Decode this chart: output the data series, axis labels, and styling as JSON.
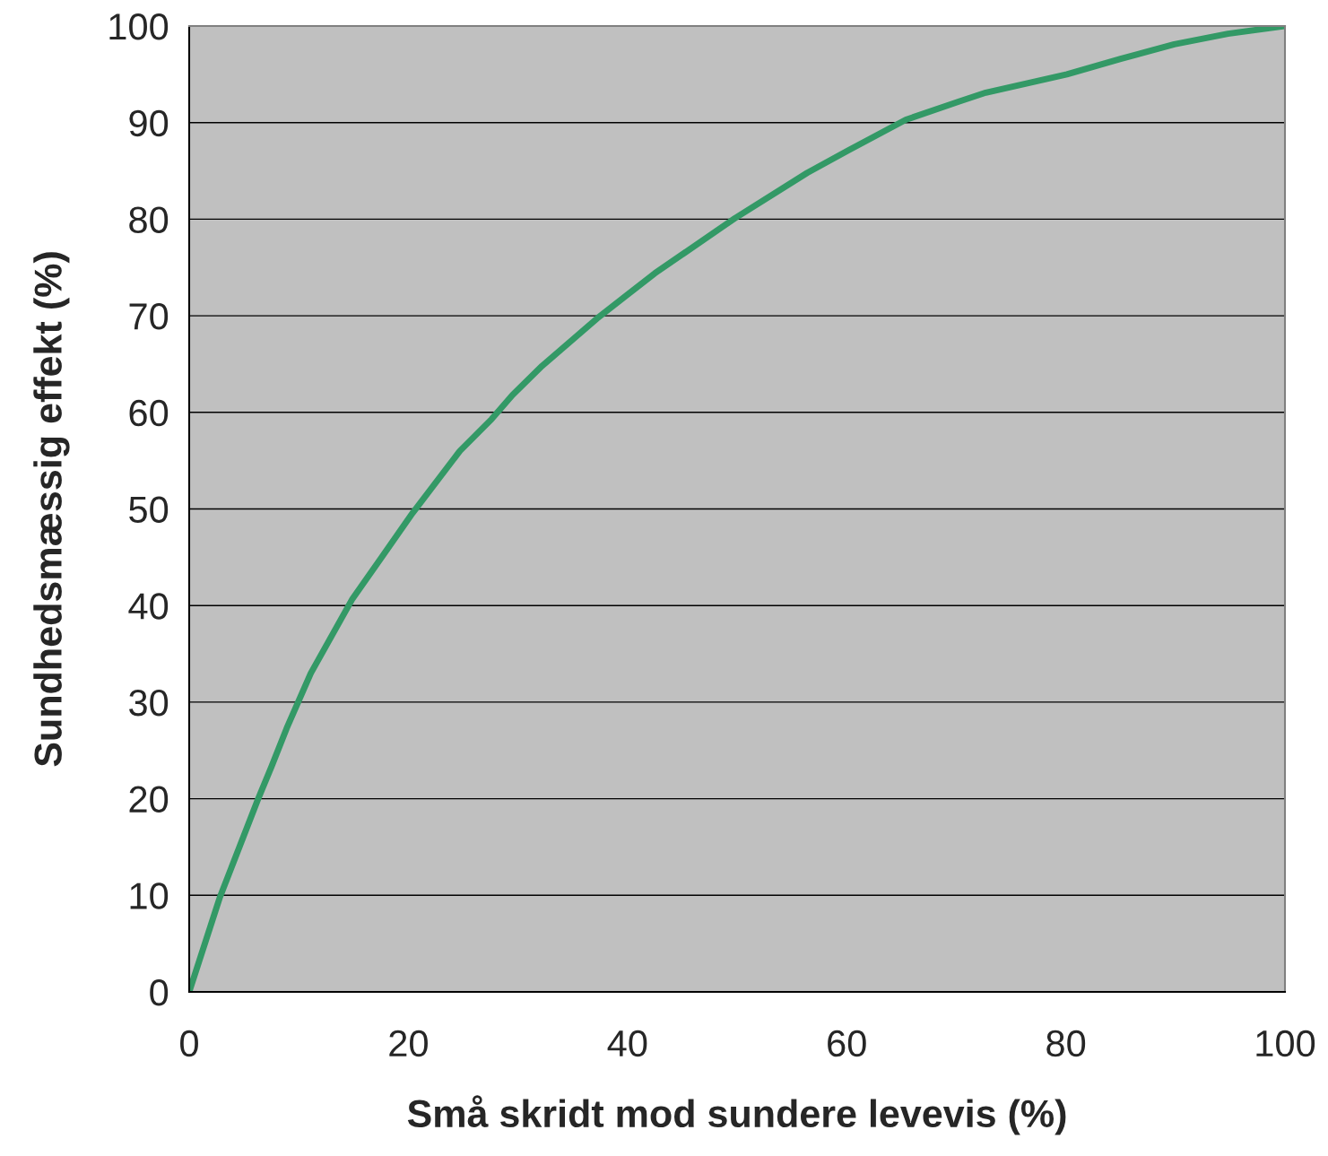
{
  "chart_data": {
    "type": "line",
    "xlabel": "Små skridt mod sundere levevis (%)",
    "ylabel": "Sundhedsmæssig effekt (%)",
    "x": [
      0,
      2.8,
      6.3,
      7.5,
      8.9,
      11.1,
      14.9,
      17.5,
      20.4,
      24.7,
      27.6,
      29.5,
      32.2,
      37.2,
      40,
      42.5,
      49.8,
      56.4,
      60.1,
      65.4,
      70.3,
      72.7,
      80.1,
      85,
      89.9,
      94.8,
      100
    ],
    "series": [
      {
        "color": "#339966",
        "values": [
          0,
          9.8,
          20,
          23.3,
          27.3,
          33,
          40.7,
          44.9,
          49.6,
          56,
          59.3,
          61.8,
          64.8,
          69.7,
          72.2,
          74.4,
          80.1,
          84.8,
          87.1,
          90.3,
          92.2,
          93.1,
          95,
          96.6,
          98.1,
          99.2,
          100
        ]
      }
    ],
    "xlim": [
      0,
      100
    ],
    "xticks": [
      0,
      20,
      40,
      60,
      80,
      100
    ],
    "ylim": [
      0,
      100
    ],
    "yticks": [
      0,
      10,
      20,
      30,
      40,
      50,
      60,
      70,
      80,
      90,
      100
    ],
    "grid": "y",
    "marker": "none",
    "line_style": "solid",
    "legend": false
  }
}
